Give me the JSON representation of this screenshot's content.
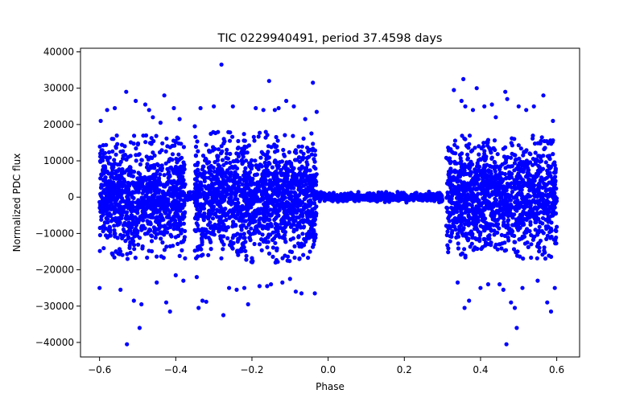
{
  "chart_data": {
    "type": "scatter",
    "title": "TIC 0229940491, period 37.4598 days",
    "xlabel": "Phase",
    "ylabel": "Normalized PDC flux",
    "xlim": [
      -0.65,
      0.66
    ],
    "ylim": [
      -44000,
      41000
    ],
    "xticks": [
      -0.6,
      -0.4,
      -0.2,
      0.0,
      0.2,
      0.4,
      0.6
    ],
    "xtick_labels": [
      "−0.6",
      "−0.4",
      "−0.2",
      "0.0",
      "0.2",
      "0.4",
      "0.6"
    ],
    "yticks": [
      -40000,
      -30000,
      -20000,
      -10000,
      0,
      10000,
      20000,
      30000,
      40000
    ],
    "ytick_labels": [
      "−40000",
      "−30000",
      "−20000",
      "−10000",
      "0",
      "10000",
      "20000",
      "30000",
      "40000"
    ],
    "grid": false,
    "legend": "none",
    "marker_color": "#0000ff",
    "dense_regions": [
      {
        "x_range": [
          -0.6,
          -0.375
        ],
        "core_sigma": 7000,
        "core_max": 17000,
        "count": 1100
      },
      {
        "x_range": [
          -0.375,
          -0.35
        ],
        "core_sigma": 500,
        "core_max": 1500,
        "count": 40
      },
      {
        "x_range": [
          -0.35,
          -0.03
        ],
        "core_sigma": 7500,
        "core_max": 18000,
        "count": 1500
      },
      {
        "x_range": [
          -0.03,
          0.3
        ],
        "core_sigma": 500,
        "core_max": 1600,
        "count": 650
      },
      {
        "x_range": [
          0.31,
          0.6
        ],
        "core_sigma": 7000,
        "core_max": 17000,
        "count": 1400
      }
    ],
    "points": [
      {
        "x": -0.6,
        "y": -25000
      },
      {
        "x": -0.597,
        "y": 21000
      },
      {
        "x": -0.58,
        "y": 24000
      },
      {
        "x": -0.56,
        "y": 24500
      },
      {
        "x": -0.545,
        "y": -25500
      },
      {
        "x": -0.53,
        "y": 29000
      },
      {
        "x": -0.528,
        "y": -40500
      },
      {
        "x": -0.51,
        "y": -28500
      },
      {
        "x": -0.505,
        "y": 26500
      },
      {
        "x": -0.495,
        "y": -36000
      },
      {
        "x": -0.49,
        "y": -29500
      },
      {
        "x": -0.48,
        "y": 25500
      },
      {
        "x": -0.47,
        "y": 24000
      },
      {
        "x": -0.46,
        "y": 22000
      },
      {
        "x": -0.45,
        "y": -23500
      },
      {
        "x": -0.44,
        "y": 20500
      },
      {
        "x": -0.43,
        "y": 28000
      },
      {
        "x": -0.425,
        "y": -29000
      },
      {
        "x": -0.415,
        "y": -31500
      },
      {
        "x": -0.405,
        "y": 24500
      },
      {
        "x": -0.4,
        "y": -21500
      },
      {
        "x": -0.39,
        "y": 21500
      },
      {
        "x": -0.38,
        "y": -23000
      },
      {
        "x": -0.35,
        "y": 19500
      },
      {
        "x": -0.345,
        "y": -22000
      },
      {
        "x": -0.335,
        "y": 24500
      },
      {
        "x": -0.34,
        "y": -30500
      },
      {
        "x": -0.33,
        "y": -28500
      },
      {
        "x": -0.32,
        "y": -28800
      },
      {
        "x": -0.3,
        "y": 25000
      },
      {
        "x": -0.28,
        "y": 36500
      },
      {
        "x": -0.275,
        "y": -32500
      },
      {
        "x": -0.26,
        "y": -25000
      },
      {
        "x": -0.25,
        "y": 25000
      },
      {
        "x": -0.24,
        "y": -25500
      },
      {
        "x": -0.22,
        "y": -25000
      },
      {
        "x": -0.21,
        "y": -29500
      },
      {
        "x": -0.19,
        "y": 24500
      },
      {
        "x": -0.18,
        "y": -24500
      },
      {
        "x": -0.17,
        "y": 24000
      },
      {
        "x": -0.16,
        "y": -24500
      },
      {
        "x": -0.155,
        "y": 32000
      },
      {
        "x": -0.15,
        "y": -24000
      },
      {
        "x": -0.14,
        "y": 24000
      },
      {
        "x": -0.13,
        "y": 24500
      },
      {
        "x": -0.12,
        "y": -23500
      },
      {
        "x": -0.11,
        "y": 26500
      },
      {
        "x": -0.1,
        "y": -22500
      },
      {
        "x": -0.09,
        "y": 25000
      },
      {
        "x": -0.085,
        "y": -26000
      },
      {
        "x": -0.07,
        "y": -26500
      },
      {
        "x": -0.06,
        "y": 21500
      },
      {
        "x": -0.04,
        "y": 31500
      },
      {
        "x": -0.03,
        "y": 23500
      },
      {
        "x": -0.035,
        "y": -26500
      },
      {
        "x": 0.33,
        "y": 29500
      },
      {
        "x": 0.34,
        "y": -23500
      },
      {
        "x": 0.35,
        "y": 26500
      },
      {
        "x": 0.355,
        "y": 32500
      },
      {
        "x": 0.358,
        "y": -30500
      },
      {
        "x": 0.36,
        "y": 25000
      },
      {
        "x": 0.37,
        "y": -28500
      },
      {
        "x": 0.38,
        "y": 24000
      },
      {
        "x": 0.39,
        "y": 30000
      },
      {
        "x": 0.4,
        "y": -25000
      },
      {
        "x": 0.41,
        "y": 25000
      },
      {
        "x": 0.42,
        "y": -24000
      },
      {
        "x": 0.43,
        "y": 25500
      },
      {
        "x": 0.44,
        "y": 22000
      },
      {
        "x": 0.45,
        "y": -24000
      },
      {
        "x": 0.46,
        "y": -25500
      },
      {
        "x": 0.465,
        "y": 29000
      },
      {
        "x": 0.468,
        "y": -40500
      },
      {
        "x": 0.47,
        "y": 27000
      },
      {
        "x": 0.48,
        "y": -29000
      },
      {
        "x": 0.49,
        "y": -30500
      },
      {
        "x": 0.495,
        "y": -36000
      },
      {
        "x": 0.5,
        "y": 25000
      },
      {
        "x": 0.51,
        "y": -25000
      },
      {
        "x": 0.52,
        "y": 24000
      },
      {
        "x": 0.54,
        "y": 25000
      },
      {
        "x": 0.55,
        "y": -23000
      },
      {
        "x": 0.565,
        "y": 28000
      },
      {
        "x": 0.575,
        "y": -29000
      },
      {
        "x": 0.585,
        "y": -31500
      },
      {
        "x": 0.59,
        "y": 21000
      },
      {
        "x": 0.595,
        "y": -25000
      }
    ]
  }
}
